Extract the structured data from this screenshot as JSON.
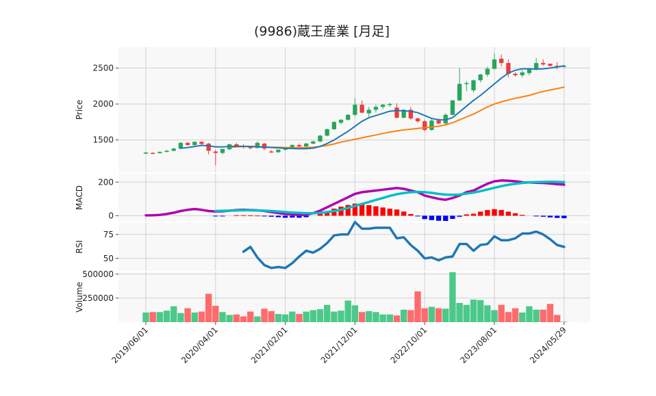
{
  "chart_data": {
    "type": "candlestick",
    "title": "(9986)蔵王産業 [月足]",
    "colors": {
      "up": "#26a65b",
      "down": "#ef3b3b",
      "ma_short": "#1f77b4",
      "ma_long": "#ff7f0e",
      "macd": "#b000b0",
      "signal": "#00bfc4",
      "hist_pos": "#ff0000",
      "hist_neg": "#0000ff",
      "rsi": "#1f77b4",
      "vol_up": "#4cc98a",
      "vol_down": "#ff6b6b",
      "grid": "#d0d0d0",
      "panel_bg": "#f8f8f8"
    },
    "x_ticks": [
      "2019/06/01",
      "2020/04/01",
      "2021/02/01",
      "2021/12/01",
      "2022/10/01",
      "2023/08/01",
      "2024/05/29"
    ],
    "x_tick_index": [
      0,
      10,
      20,
      30,
      40,
      50,
      60
    ],
    "panels": {
      "price": {
        "ylabel": "Price",
        "yticks": [
          1500,
          2000,
          2500
        ],
        "ylim": [
          1050,
          2790
        ]
      },
      "macd": {
        "ylabel": "MACD",
        "yticks": [
          0,
          200
        ],
        "ylim": [
          -35,
          250
        ]
      },
      "rsi": {
        "ylabel": "RSI",
        "yticks": [
          50,
          75
        ],
        "ylim": [
          37,
          87
        ]
      },
      "volume": {
        "ylabel": "Volume",
        "yticks": [
          250000,
          500000
        ],
        "ylim": [
          0,
          520000
        ]
      }
    },
    "ohlc": [
      [
        1310,
        1335,
        1305,
        1325
      ],
      [
        1320,
        1330,
        1310,
        1318
      ],
      [
        1318,
        1340,
        1310,
        1335
      ],
      [
        1335,
        1360,
        1325,
        1350
      ],
      [
        1350,
        1390,
        1340,
        1380
      ],
      [
        1380,
        1470,
        1370,
        1460
      ],
      [
        1460,
        1470,
        1420,
        1430
      ],
      [
        1430,
        1480,
        1420,
        1475
      ],
      [
        1475,
        1480,
        1430,
        1445
      ],
      [
        1450,
        1460,
        1300,
        1350
      ],
      [
        1340,
        1360,
        1150,
        1320
      ],
      [
        1320,
        1380,
        1300,
        1375
      ],
      [
        1370,
        1450,
        1360,
        1440
      ],
      [
        1440,
        1460,
        1400,
        1420
      ],
      [
        1420,
        1440,
        1380,
        1400
      ],
      [
        1400,
        1420,
        1370,
        1390
      ],
      [
        1390,
        1480,
        1380,
        1460
      ],
      [
        1450,
        1460,
        1360,
        1380
      ],
      [
        1340,
        1360,
        1320,
        1330
      ],
      [
        1330,
        1370,
        1320,
        1365
      ],
      [
        1365,
        1400,
        1350,
        1390
      ],
      [
        1390,
        1440,
        1380,
        1430
      ],
      [
        1430,
        1450,
        1390,
        1410
      ],
      [
        1410,
        1460,
        1400,
        1450
      ],
      [
        1450,
        1490,
        1440,
        1480
      ],
      [
        1480,
        1570,
        1470,
        1560
      ],
      [
        1560,
        1660,
        1550,
        1650
      ],
      [
        1650,
        1760,
        1640,
        1750
      ],
      [
        1740,
        1790,
        1720,
        1780
      ],
      [
        1780,
        1860,
        1770,
        1850
      ],
      [
        1850,
        2080,
        1830,
        1990
      ],
      [
        1990,
        2050,
        1870,
        1880
      ],
      [
        1870,
        1960,
        1810,
        1920
      ],
      [
        1920,
        1990,
        1880,
        1960
      ],
      [
        1960,
        2000,
        1930,
        1990
      ],
      [
        1990,
        2020,
        1960,
        2000
      ],
      [
        1950,
        2010,
        1800,
        1810
      ],
      [
        1810,
        1930,
        1800,
        1920
      ],
      [
        1920,
        1960,
        1780,
        1800
      ],
      [
        1800,
        1810,
        1740,
        1760
      ],
      [
        1760,
        1780,
        1620,
        1640
      ],
      [
        1640,
        1790,
        1630,
        1770
      ],
      [
        1770,
        1800,
        1720,
        1730
      ],
      [
        1730,
        1870,
        1710,
        1850
      ],
      [
        1850,
        2060,
        1840,
        2050
      ],
      [
        2050,
        2500,
        2040,
        2280
      ],
      [
        2280,
        2320,
        2180,
        2290
      ],
      [
        2190,
        2340,
        2160,
        2330
      ],
      [
        2330,
        2420,
        2300,
        2410
      ],
      [
        2410,
        2520,
        2380,
        2490
      ],
      [
        2490,
        2700,
        2480,
        2620
      ],
      [
        2630,
        2690,
        2520,
        2570
      ],
      [
        2570,
        2620,
        2370,
        2420
      ],
      [
        2420,
        2440,
        2380,
        2400
      ],
      [
        2400,
        2470,
        2370,
        2440
      ],
      [
        2430,
        2500,
        2400,
        2480
      ],
      [
        2480,
        2640,
        2470,
        2570
      ],
      [
        2570,
        2620,
        2530,
        2550
      ],
      [
        2560,
        2560,
        2520,
        2530
      ],
      [
        2530,
        2580,
        2480,
        2520
      ],
      [
        2525,
        2545,
        2505,
        2530
      ]
    ],
    "ma_short": [
      null,
      null,
      null,
      null,
      null,
      1385,
      1395,
      1410,
      1425,
      1420,
      1405,
      1405,
      1408,
      1412,
      1412,
      1408,
      1405,
      1402,
      1396,
      1390,
      1385,
      1382,
      1378,
      1378,
      1388,
      1410,
      1450,
      1500,
      1560,
      1620,
      1690,
      1760,
      1810,
      1840,
      1870,
      1900,
      1910,
      1905,
      1900,
      1880,
      1840,
      1800,
      1780,
      1780,
      1810,
      1890,
      1970,
      2050,
      2120,
      2200,
      2280,
      2360,
      2430,
      2470,
      2490,
      2490,
      2485,
      2490,
      2500,
      2515,
      2530
    ],
    "ma_long": [
      null,
      null,
      null,
      null,
      null,
      null,
      null,
      null,
      null,
      null,
      null,
      null,
      1400,
      1405,
      1408,
      1410,
      1408,
      1404,
      1400,
      1398,
      1395,
      1393,
      1392,
      1394,
      1398,
      1410,
      1425,
      1445,
      1470,
      1490,
      1510,
      1530,
      1550,
      1570,
      1590,
      1610,
      1625,
      1640,
      1650,
      1660,
      1670,
      1680,
      1690,
      1710,
      1740,
      1780,
      1820,
      1860,
      1910,
      1960,
      2000,
      2030,
      2055,
      2080,
      2100,
      2120,
      2150,
      2175,
      2195,
      2215,
      2235
    ],
    "macd": [
      2,
      3,
      5,
      10,
      18,
      28,
      35,
      40,
      35,
      28,
      25,
      26,
      30,
      34,
      35,
      34,
      32,
      28,
      22,
      16,
      10,
      8,
      5,
      6,
      15,
      30,
      50,
      70,
      90,
      110,
      130,
      140,
      145,
      150,
      155,
      160,
      165,
      160,
      150,
      140,
      120,
      110,
      100,
      95,
      105,
      120,
      140,
      150,
      170,
      190,
      205,
      210,
      208,
      205,
      200,
      198,
      196,
      195,
      192,
      188,
      185
    ],
    "signal": [
      null,
      null,
      null,
      null,
      null,
      null,
      null,
      null,
      null,
      null,
      28,
      29,
      30,
      31,
      32,
      32,
      31,
      30,
      28,
      25,
      22,
      19,
      17,
      15,
      15,
      17,
      22,
      28,
      36,
      46,
      58,
      70,
      82,
      94,
      106,
      118,
      128,
      135,
      140,
      142,
      140,
      136,
      130,
      126,
      124,
      126,
      132,
      138,
      146,
      156,
      166,
      176,
      184,
      190,
      195,
      198,
      200,
      201,
      202,
      201,
      200
    ],
    "hist": [
      0,
      0,
      0,
      0,
      0,
      0,
      0,
      0,
      0,
      0,
      -3,
      -3,
      0,
      3,
      3,
      2,
      1,
      -2,
      -6,
      -9,
      -12,
      -11,
      -12,
      -9,
      0,
      13,
      28,
      42,
      54,
      64,
      72,
      70,
      63,
      56,
      49,
      42,
      37,
      25,
      10,
      -2,
      -20,
      -26,
      -30,
      -31,
      -19,
      -6,
      8,
      12,
      24,
      34,
      39,
      34,
      24,
      15,
      5,
      0,
      -4,
      -6,
      -10,
      -13,
      -15
    ],
    "rsi": [
      null,
      null,
      null,
      null,
      null,
      null,
      null,
      null,
      null,
      null,
      null,
      null,
      null,
      null,
      57,
      62,
      51,
      43,
      40,
      41,
      40,
      45,
      52,
      58,
      56,
      60,
      66,
      74,
      75,
      75,
      88,
      81,
      81,
      82,
      82,
      82,
      71,
      72,
      64,
      58,
      50,
      51,
      48,
      51,
      52,
      65,
      65,
      58,
      64,
      65,
      73,
      69,
      69,
      71,
      76,
      76,
      78,
      75,
      70,
      64,
      62
    ],
    "volume": [
      100000,
      105000,
      105000,
      120000,
      165000,
      95000,
      145000,
      100000,
      110000,
      295000,
      170000,
      105000,
      75000,
      80000,
      60000,
      110000,
      60000,
      140000,
      115000,
      85000,
      80000,
      110000,
      85000,
      110000,
      125000,
      135000,
      180000,
      110000,
      120000,
      225000,
      175000,
      105000,
      115000,
      105000,
      80000,
      80000,
      70000,
      130000,
      125000,
      320000,
      145000,
      160000,
      145000,
      140000,
      520000,
      200000,
      180000,
      235000,
      230000,
      175000,
      125000,
      180000,
      105000,
      145000,
      100000,
      165000,
      130000,
      130000,
      190000,
      75000,
      5000
    ]
  }
}
